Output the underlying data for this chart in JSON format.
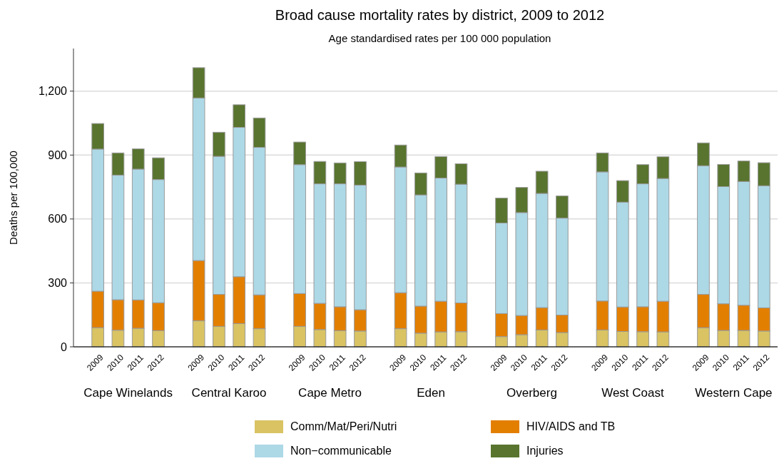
{
  "chart_data": {
    "type": "bar",
    "title": "Broad cause mortality rates by district, 2009 to 2012",
    "subtitle": "Age standardised rates per 100 000 population",
    "ylabel": "Deaths per 100,000",
    "categories": [
      "2009",
      "2010",
      "2011",
      "2012",
      null,
      "2009",
      "2010",
      "2011",
      "2012",
      null,
      "2009",
      "2010",
      "2011",
      "2012",
      null,
      "2009",
      "2010",
      "2011",
      "2012",
      null,
      "2009",
      "2010",
      "2011",
      "2012",
      null,
      "2009",
      "2010",
      "2011",
      "2012",
      null,
      "2009",
      "2010",
      "2011",
      "2012"
    ],
    "annotations": [
      "Cape Winelands",
      "Central Karoo",
      "Cape Metro",
      "Eden",
      "Overberg",
      "West Coast",
      "Western Cape"
    ],
    "stacked": true,
    "series": [
      {
        "name": "Comm/Mat/Peri/Nutri",
        "color": "#d9c363",
        "values": [
          90,
          78,
          87,
          76,
          null,
          122,
          96,
          109,
          85,
          null,
          96,
          81,
          76,
          74,
          null,
          85,
          64,
          70,
          71,
          null,
          48,
          57,
          79,
          67,
          null,
          79,
          72,
          71,
          70,
          null,
          90,
          77,
          77,
          74
        ]
      },
      {
        "name": "HIV/AIDS and TB",
        "color": "#e37f00",
        "values": [
          171,
          143,
          133,
          131,
          null,
          283,
          150,
          220,
          159,
          null,
          154,
          123,
          112,
          100,
          null,
          169,
          127,
          144,
          135,
          null,
          108,
          90,
          105,
          82,
          null,
          136,
          115,
          117,
          144,
          null,
          156,
          125,
          118,
          109
        ]
      },
      {
        "name": "Non−communicable",
        "color": "#add8e6",
        "values": [
          667,
          585,
          614,
          578,
          null,
          763,
          648,
          701,
          692,
          null,
          605,
          561,
          577,
          585,
          null,
          590,
          522,
          578,
          557,
          null,
          425,
          483,
          536,
          455,
          null,
          606,
          492,
          577,
          576,
          null,
          604,
          550,
          581,
          573
        ]
      },
      {
        "name": "Injuries",
        "color": "#58742e",
        "values": [
          120,
          104,
          95,
          102,
          null,
          142,
          113,
          106,
          138,
          null,
          106,
          105,
          98,
          110,
          null,
          103,
          103,
          101,
          96,
          null,
          117,
          118,
          104,
          104,
          null,
          89,
          101,
          90,
          102,
          null,
          107,
          104,
          96,
          108
        ]
      }
    ],
    "ylim": [
      0,
      1400
    ],
    "yticks": [
      0,
      300,
      600,
      900,
      {
        "value": 1200,
        "label": "1,200"
      }
    ],
    "grid": "y",
    "legend": "bottom"
  }
}
